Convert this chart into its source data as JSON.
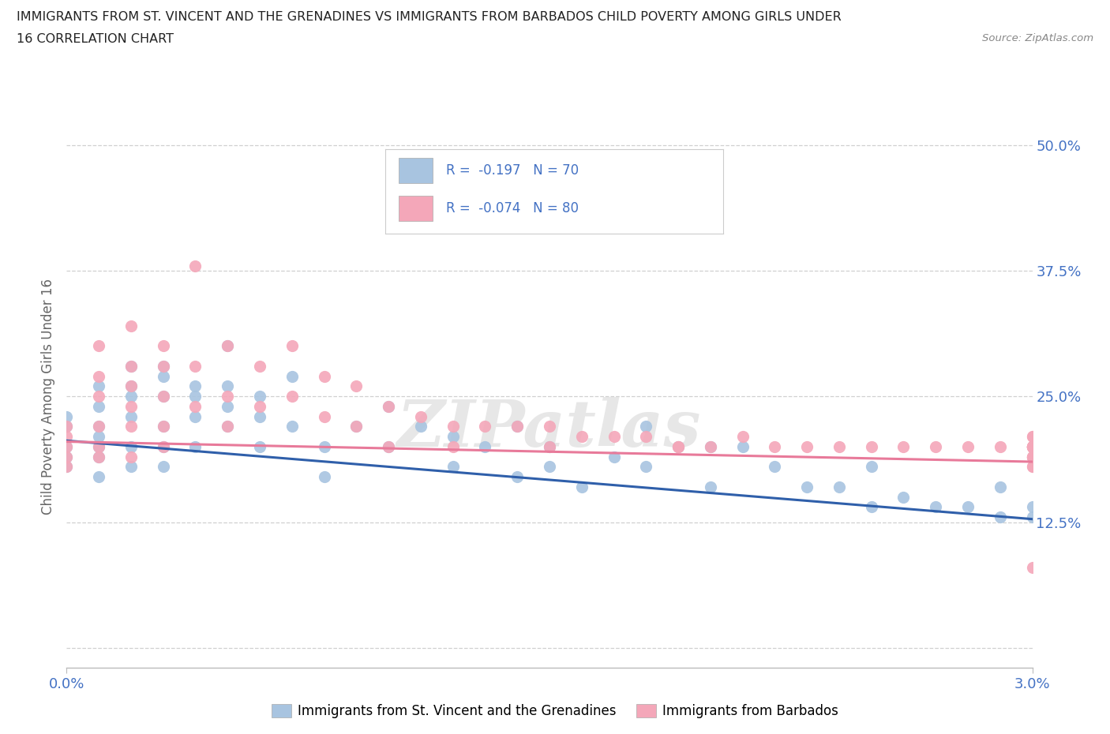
{
  "title_line1": "IMMIGRANTS FROM ST. VINCENT AND THE GRENADINES VS IMMIGRANTS FROM BARBADOS CHILD POVERTY AMONG GIRLS UNDER",
  "title_line2": "16 CORRELATION CHART",
  "source": "Source: ZipAtlas.com",
  "ylabel": "Child Poverty Among Girls Under 16",
  "xmin": 0.0,
  "xmax": 0.03,
  "ymin": -0.02,
  "ymax": 0.52,
  "yticks": [
    0.0,
    0.125,
    0.25,
    0.375,
    0.5
  ],
  "ytick_labels": [
    "",
    "12.5%",
    "25.0%",
    "37.5%",
    "50.0%"
  ],
  "xtick_labels": [
    "0.0%",
    "3.0%"
  ],
  "legend1_label": "Immigrants from St. Vincent and the Grenadines",
  "legend2_label": "Immigrants from Barbados",
  "R1": -0.197,
  "N1": 70,
  "R2": -0.074,
  "N2": 80,
  "color1": "#a8c4e0",
  "color2": "#f4a7b9",
  "line1_color": "#2f5faa",
  "line2_color": "#e87a9a",
  "scatter1_x": [
    0.0,
    0.0,
    0.0,
    0.0,
    0.0,
    0.001,
    0.001,
    0.001,
    0.001,
    0.001,
    0.001,
    0.001,
    0.002,
    0.002,
    0.002,
    0.002,
    0.002,
    0.002,
    0.003,
    0.003,
    0.003,
    0.003,
    0.003,
    0.003,
    0.004,
    0.004,
    0.004,
    0.004,
    0.005,
    0.005,
    0.005,
    0.005,
    0.006,
    0.006,
    0.006,
    0.007,
    0.007,
    0.008,
    0.008,
    0.009,
    0.01,
    0.01,
    0.011,
    0.012,
    0.012,
    0.013,
    0.014,
    0.014,
    0.015,
    0.015,
    0.016,
    0.017,
    0.018,
    0.018,
    0.019,
    0.02,
    0.02,
    0.021,
    0.022,
    0.023,
    0.024,
    0.025,
    0.025,
    0.026,
    0.027,
    0.028,
    0.029,
    0.029,
    0.03,
    0.03
  ],
  "scatter1_y": [
    0.2,
    0.22,
    0.19,
    0.18,
    0.23,
    0.2,
    0.22,
    0.26,
    0.19,
    0.17,
    0.24,
    0.21,
    0.28,
    0.26,
    0.23,
    0.2,
    0.25,
    0.18,
    0.27,
    0.25,
    0.22,
    0.28,
    0.18,
    0.2,
    0.26,
    0.23,
    0.2,
    0.25,
    0.3,
    0.26,
    0.22,
    0.24,
    0.25,
    0.2,
    0.23,
    0.27,
    0.22,
    0.2,
    0.17,
    0.22,
    0.24,
    0.2,
    0.22,
    0.21,
    0.18,
    0.2,
    0.17,
    0.22,
    0.2,
    0.18,
    0.16,
    0.19,
    0.18,
    0.22,
    0.2,
    0.16,
    0.2,
    0.2,
    0.18,
    0.16,
    0.16,
    0.14,
    0.18,
    0.15,
    0.14,
    0.14,
    0.13,
    0.16,
    0.14,
    0.13
  ],
  "scatter2_x": [
    0.0,
    0.0,
    0.0,
    0.0,
    0.0,
    0.001,
    0.001,
    0.001,
    0.001,
    0.001,
    0.001,
    0.002,
    0.002,
    0.002,
    0.002,
    0.002,
    0.002,
    0.003,
    0.003,
    0.003,
    0.003,
    0.003,
    0.004,
    0.004,
    0.004,
    0.005,
    0.005,
    0.005,
    0.006,
    0.006,
    0.007,
    0.007,
    0.008,
    0.008,
    0.009,
    0.009,
    0.01,
    0.01,
    0.011,
    0.012,
    0.012,
    0.013,
    0.014,
    0.015,
    0.015,
    0.016,
    0.017,
    0.018,
    0.019,
    0.019,
    0.02,
    0.021,
    0.022,
    0.023,
    0.024,
    0.025,
    0.026,
    0.027,
    0.028,
    0.029,
    0.03,
    0.03,
    0.03,
    0.03,
    0.03,
    0.03,
    0.03,
    0.03,
    0.03,
    0.03,
    0.03,
    0.03,
    0.03,
    0.03,
    0.03,
    0.03,
    0.03,
    0.03,
    0.03,
    0.03
  ],
  "scatter2_y": [
    0.2,
    0.22,
    0.19,
    0.21,
    0.18,
    0.2,
    0.25,
    0.22,
    0.19,
    0.3,
    0.27,
    0.32,
    0.28,
    0.24,
    0.26,
    0.22,
    0.19,
    0.3,
    0.28,
    0.25,
    0.22,
    0.2,
    0.38,
    0.28,
    0.24,
    0.3,
    0.25,
    0.22,
    0.28,
    0.24,
    0.3,
    0.25,
    0.27,
    0.23,
    0.26,
    0.22,
    0.24,
    0.2,
    0.23,
    0.22,
    0.2,
    0.22,
    0.22,
    0.2,
    0.22,
    0.21,
    0.21,
    0.21,
    0.2,
    0.2,
    0.2,
    0.21,
    0.2,
    0.2,
    0.2,
    0.2,
    0.2,
    0.2,
    0.2,
    0.2,
    0.2,
    0.19,
    0.21,
    0.2,
    0.19,
    0.18,
    0.2,
    0.21,
    0.19,
    0.2,
    0.2,
    0.18,
    0.2,
    0.19,
    0.08,
    0.2,
    0.2,
    0.19,
    0.2,
    0.2
  ],
  "watermark_text": "ZIPatlas",
  "background_color": "#ffffff",
  "title_color": "#222222",
  "axis_label_color": "#666666",
  "tick_color": "#4472c4",
  "grid_color": "#d0d0d0"
}
